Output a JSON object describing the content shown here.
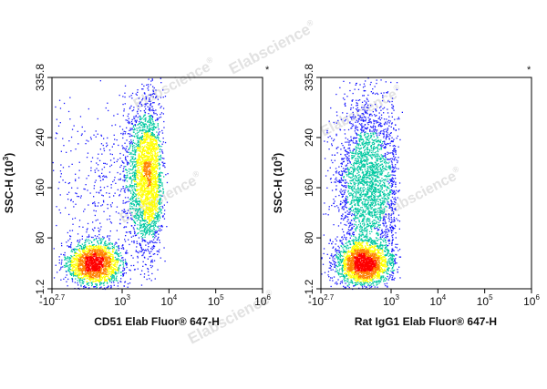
{
  "watermark": "Elabscience",
  "watermark_registered": "®",
  "colors": {
    "density_low": "#1a1aff",
    "density_mid": "#00c8a0",
    "density_high_1": "#ffff00",
    "density_high_2": "#ff8000",
    "density_peak": "#ff0000",
    "axis": "#000000",
    "watermark": "#e2e2e2"
  },
  "chart_data": [
    {
      "type": "scatter",
      "subtype": "flow-cytometry-density-dot-plot",
      "xlabel": "CD51 Elab Fluor® 647-H",
      "ylabel_main": "SSC-H (10",
      "ylabel_exp": "3",
      "ylabel_close": ")",
      "corner_mark": "*",
      "x_scale": "biexponential",
      "xlim": [
        -500,
        1000000
      ],
      "x_ticks": [
        {
          "value": -500,
          "base": "-10",
          "exp": "2.7"
        },
        {
          "value": 1000,
          "base": "10",
          "exp": "3"
        },
        {
          "value": 10000,
          "base": "10",
          "exp": "4"
        },
        {
          "value": 100000,
          "base": "10",
          "exp": "5"
        },
        {
          "value": 1000000,
          "base": "10",
          "exp": "6"
        }
      ],
      "ylim": [
        -1.2,
        335.8
      ],
      "y_ticks": [
        "-1.2",
        "80",
        "160",
        "240",
        "335.8"
      ],
      "y_tick_values": [
        -1.2,
        80,
        160,
        240,
        335.8
      ],
      "populations": [
        {
          "name": "",
          "x_center": 400,
          "y_center": 40,
          "x_spread": 300,
          "y_spread": 18,
          "weight": 0.4
        },
        {
          "name": "",
          "x_center": 3000,
          "y_center": 180,
          "x_spread": 1800,
          "y_spread": 60,
          "weight": 0.6
        }
      ]
    },
    {
      "type": "scatter",
      "subtype": "flow-cytometry-density-dot-plot",
      "xlabel": "Rat IgG1 Elab Fluor® 647-H",
      "ylabel_main": "SSC-H (10",
      "ylabel_exp": "3",
      "ylabel_close": ")",
      "corner_mark": "*",
      "x_scale": "biexponential",
      "xlim": [
        -500,
        1000000
      ],
      "x_ticks": [
        {
          "value": -500,
          "base": "-10",
          "exp": "2.7"
        },
        {
          "value": 1000,
          "base": "10",
          "exp": "3"
        },
        {
          "value": 10000,
          "base": "10",
          "exp": "4"
        },
        {
          "value": 100000,
          "base": "10",
          "exp": "5"
        },
        {
          "value": 1000000,
          "base": "10",
          "exp": "6"
        }
      ],
      "ylim": [
        -1.2,
        335.8
      ],
      "y_ticks": [
        "-1.2",
        "80",
        "160",
        "240",
        "335.8"
      ],
      "y_tick_values": [
        -1.2,
        80,
        160,
        240,
        335.8
      ],
      "populations": [
        {
          "name": "",
          "x_center": 400,
          "y_center": 40,
          "x_spread": 300,
          "y_spread": 18,
          "weight": 0.45
        },
        {
          "name": "",
          "x_center": 500,
          "y_center": 170,
          "x_spread": 350,
          "y_spread": 70,
          "weight": 0.55
        }
      ]
    }
  ]
}
